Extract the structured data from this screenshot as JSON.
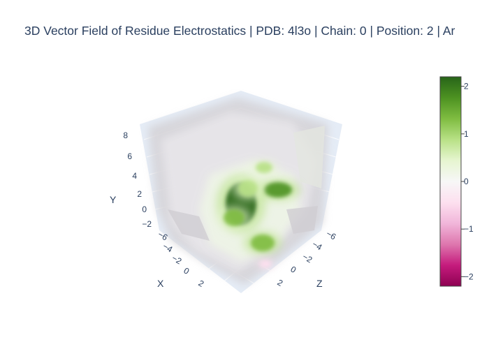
{
  "chart_data": {
    "type": "3d-volume",
    "title": "3D Vector Field of Residue Electrostatics | PDB: 4l3o | Chain: 0 | Position: 2 | Ar",
    "axes": {
      "x": {
        "label": "X",
        "ticks": [
          "−6",
          "−4",
          "−2",
          "0",
          "2"
        ]
      },
      "y": {
        "label": "Y",
        "ticks": [
          "−2",
          "0",
          "2",
          "4",
          "6",
          "8"
        ]
      },
      "z": {
        "label": "Z",
        "ticks": [
          "−6",
          "−4",
          "−2",
          "0",
          "2"
        ]
      }
    },
    "colorbar": {
      "ticks": [
        "2",
        "1",
        "0",
        "−1",
        "−2"
      ],
      "range": [
        -2.2,
        2.2
      ],
      "colorscale": [
        "#8e0152",
        "#c51b7d",
        "#de77ae",
        "#f1b6da",
        "#fde0ef",
        "#f7f7f7",
        "#e6f5d0",
        "#b8e186",
        "#7fbc41",
        "#4d9221",
        "#276419"
      ]
    },
    "hotspots": [
      {
        "value": 2.1
      },
      {
        "value": 1.6
      },
      {
        "value": 1.4
      },
      {
        "value": 1.2
      },
      {
        "value": 1.0
      },
      {
        "value": 0.9
      },
      {
        "value": -0.5
      }
    ]
  }
}
